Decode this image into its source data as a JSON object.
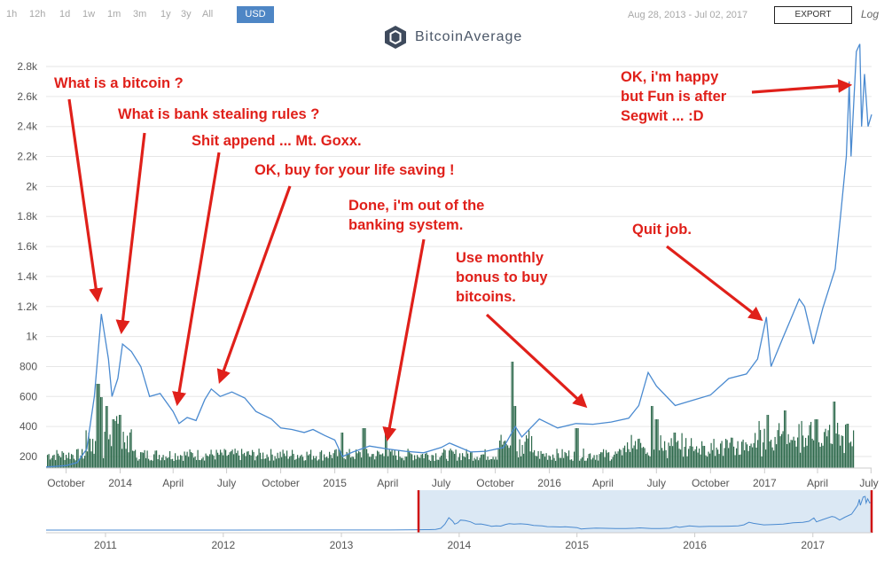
{
  "toolbar": {
    "ranges": [
      "1h",
      "12h",
      "1d",
      "1w",
      "1m",
      "3m",
      "1y",
      "3y",
      "All"
    ],
    "currency": "USD",
    "date_range": "Aug 28, 2013 - Jul 02, 2017",
    "export_label": "EXPORT",
    "log_label": "Log"
  },
  "brand": {
    "name": "BitcoinAverage"
  },
  "annotations": [
    {
      "text": "What is a bitcoin ?"
    },
    {
      "text": "What is bank stealing rules ?"
    },
    {
      "text": "Shit append ... Mt. Goxx."
    },
    {
      "text": "OK, buy for your life saving !"
    },
    {
      "text": "Done, i'm out of the\nbanking system."
    },
    {
      "text": "Use monthly\nbonus to buy\nbitcoins."
    },
    {
      "text": "Quit job."
    },
    {
      "text": "OK, i'm happy\nbut Fun is after\nSegwit ... :D"
    }
  ],
  "colors": {
    "line": "#4a8ad0",
    "volume": "#2e6a4c",
    "annotation": "#e0201a",
    "navigator_fill": "#dbe8f4",
    "navigator_handle": "#d01010"
  },
  "chart_data": {
    "type": "line",
    "title": "",
    "xlabel": "",
    "ylabel": "",
    "x_range": [
      "2013-08-28",
      "2017-07-02"
    ],
    "ylim": [
      100,
      2950
    ],
    "y_ticks": [
      "200",
      "400",
      "600",
      "800",
      "1k",
      "1.2k",
      "1.4k",
      "1.6k",
      "1.8k",
      "2k",
      "2.2k",
      "2.4k",
      "2.6k",
      "2.8k"
    ],
    "x_ticks": [
      "October",
      "2014",
      "April",
      "July",
      "October",
      "2015",
      "April",
      "July",
      "October",
      "2016",
      "April",
      "July",
      "October",
      "2017",
      "April",
      "July"
    ],
    "series": [
      {
        "values": [
          [
            "2013-08-28",
            130
          ],
          [
            "2013-09-15",
            135
          ],
          [
            "2013-10-01",
            140
          ],
          [
            "2013-10-20",
            160
          ],
          [
            "2013-11-05",
            250
          ],
          [
            "2013-11-18",
            600
          ],
          [
            "2013-11-30",
            1150
          ],
          [
            "2013-12-06",
            1000
          ],
          [
            "2013-12-12",
            850
          ],
          [
            "2013-12-18",
            600
          ],
          [
            "2013-12-28",
            720
          ],
          [
            "2014-01-05",
            950
          ],
          [
            "2014-01-20",
            900
          ],
          [
            "2014-02-05",
            800
          ],
          [
            "2014-02-20",
            600
          ],
          [
            "2014-03-10",
            620
          ],
          [
            "2014-04-01",
            500
          ],
          [
            "2014-04-11",
            420
          ],
          [
            "2014-04-25",
            460
          ],
          [
            "2014-05-10",
            440
          ],
          [
            "2014-05-25",
            580
          ],
          [
            "2014-06-05",
            650
          ],
          [
            "2014-06-20",
            600
          ],
          [
            "2014-07-10",
            630
          ],
          [
            "2014-08-01",
            590
          ],
          [
            "2014-08-20",
            500
          ],
          [
            "2014-09-15",
            450
          ],
          [
            "2014-10-01",
            390
          ],
          [
            "2014-10-20",
            380
          ],
          [
            "2014-11-10",
            360
          ],
          [
            "2014-11-25",
            380
          ],
          [
            "2014-12-15",
            340
          ],
          [
            "2015-01-01",
            310
          ],
          [
            "2015-01-14",
            200
          ],
          [
            "2015-02-01",
            230
          ],
          [
            "2015-03-01",
            270
          ],
          [
            "2015-04-01",
            250
          ],
          [
            "2015-05-01",
            235
          ],
          [
            "2015-06-01",
            225
          ],
          [
            "2015-07-01",
            260
          ],
          [
            "2015-07-15",
            290
          ],
          [
            "2015-08-20",
            230
          ],
          [
            "2015-09-15",
            235
          ],
          [
            "2015-10-15",
            260
          ],
          [
            "2015-11-04",
            400
          ],
          [
            "2015-11-15",
            330
          ],
          [
            "2015-12-15",
            450
          ],
          [
            "2016-01-15",
            390
          ],
          [
            "2016-02-15",
            420
          ],
          [
            "2016-03-15",
            415
          ],
          [
            "2016-04-15",
            430
          ],
          [
            "2016-05-15",
            455
          ],
          [
            "2016-06-01",
            540
          ],
          [
            "2016-06-17",
            760
          ],
          [
            "2016-07-01",
            670
          ],
          [
            "2016-08-02",
            540
          ],
          [
            "2016-09-01",
            575
          ],
          [
            "2016-10-01",
            610
          ],
          [
            "2016-11-01",
            720
          ],
          [
            "2016-12-01",
            750
          ],
          [
            "2016-12-20",
            850
          ],
          [
            "2017-01-04",
            1130
          ],
          [
            "2017-01-12",
            800
          ],
          [
            "2017-02-01",
            990
          ],
          [
            "2017-03-01",
            1250
          ],
          [
            "2017-03-10",
            1200
          ],
          [
            "2017-03-25",
            950
          ],
          [
            "2017-04-10",
            1190
          ],
          [
            "2017-05-01",
            1450
          ],
          [
            "2017-05-10",
            1800
          ],
          [
            "2017-05-20",
            2200
          ],
          [
            "2017-05-25",
            2700
          ],
          [
            "2017-05-28",
            2200
          ],
          [
            "2017-06-06",
            2900
          ],
          [
            "2017-06-12",
            2950
          ],
          [
            "2017-06-15",
            2400
          ],
          [
            "2017-06-20",
            2750
          ],
          [
            "2017-06-26",
            2400
          ],
          [
            "2017-07-02",
            2480
          ]
        ]
      }
    ],
    "navigator": {
      "x_ticks": [
        "2011",
        "2012",
        "2013",
        "2014",
        "2015",
        "2016",
        "2017"
      ],
      "selection": [
        "2013-08-28",
        "2017-07-02"
      ]
    }
  }
}
